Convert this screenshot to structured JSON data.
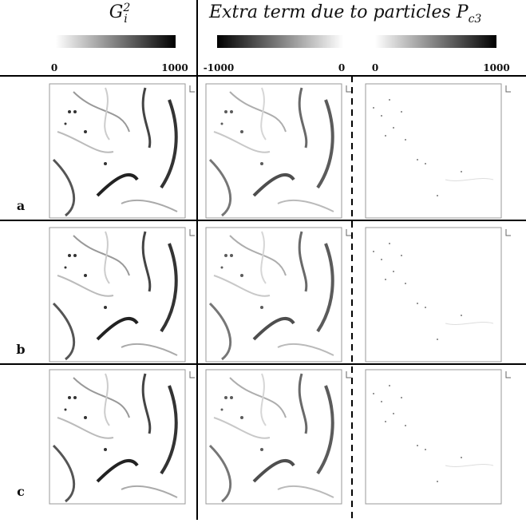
{
  "header": {
    "left_title": {
      "base": "G",
      "sub": "i",
      "sup": "2"
    },
    "right_title": {
      "text": "Extra term due to particles P",
      "sub": "c3"
    }
  },
  "colorbars": [
    {
      "min_label": "0",
      "max_label": "1000"
    },
    {
      "min_label": "-1000",
      "max_label": "0"
    },
    {
      "min_label": "0",
      "max_label": "1000"
    }
  ],
  "rows": [
    {
      "label": "a"
    },
    {
      "label": "b"
    },
    {
      "label": "c"
    }
  ]
}
